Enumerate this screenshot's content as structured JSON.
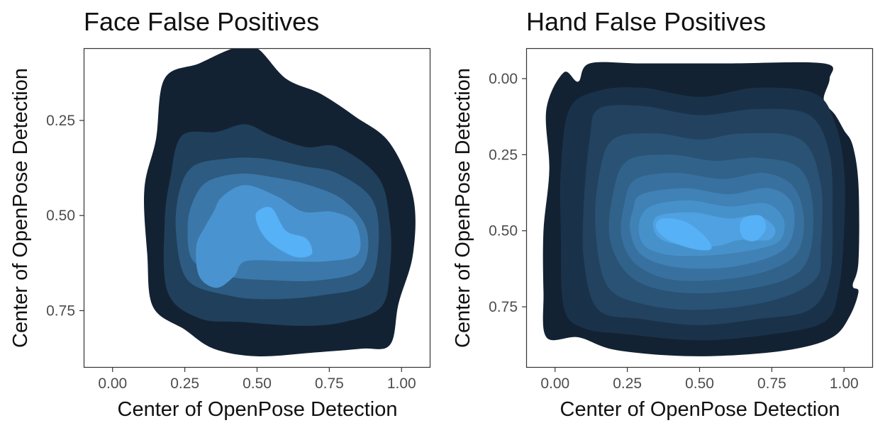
{
  "chart_data": [
    {
      "type": "density-contour",
      "title": "Face False Positives",
      "xlabel": "Center of OpenPose Detection",
      "ylabel": "Center of OpenPose Detection",
      "xlim": [
        -0.1,
        1.1
      ],
      "ylim": [
        0.9,
        0.06
      ],
      "xticks": [
        0,
        0.25,
        0.5,
        0.75,
        1.0
      ],
      "xtick_labels": [
        "0.00",
        "0.25",
        "0.50",
        "0.75",
        "1.00"
      ],
      "yticks": [
        0.25,
        0.5,
        0.75
      ],
      "ytick_labels": [
        "0.25",
        "0.50",
        "0.75"
      ],
      "y_reversed": true,
      "grid": false,
      "fill_color_low": "#132233",
      "fill_color_high": "#56b1f7",
      "levels": [
        {
          "level": 1,
          "contour": [
            [
              0.18,
              0.14
            ],
            [
              0.3,
              0.1
            ],
            [
              0.42,
              0.06
            ],
            [
              0.5,
              0.06
            ],
            [
              0.6,
              0.14
            ],
            [
              0.72,
              0.18
            ],
            [
              0.84,
              0.24
            ],
            [
              0.96,
              0.31
            ],
            [
              1.04,
              0.45
            ],
            [
              1.04,
              0.6
            ],
            [
              0.99,
              0.73
            ],
            [
              0.96,
              0.84
            ],
            [
              0.86,
              0.85
            ],
            [
              0.7,
              0.86
            ],
            [
              0.5,
              0.87
            ],
            [
              0.35,
              0.85
            ],
            [
              0.25,
              0.8
            ],
            [
              0.14,
              0.74
            ],
            [
              0.12,
              0.6
            ],
            [
              0.11,
              0.43
            ],
            [
              0.15,
              0.3
            ]
          ]
        },
        {
          "level": 2,
          "contour": [
            [
              0.24,
              0.29
            ],
            [
              0.36,
              0.28
            ],
            [
              0.46,
              0.26
            ],
            [
              0.55,
              0.29
            ],
            [
              0.67,
              0.32
            ],
            [
              0.78,
              0.32
            ],
            [
              0.92,
              0.4
            ],
            [
              0.96,
              0.52
            ],
            [
              0.96,
              0.64
            ],
            [
              0.93,
              0.74
            ],
            [
              0.8,
              0.78
            ],
            [
              0.65,
              0.79
            ],
            [
              0.45,
              0.78
            ],
            [
              0.3,
              0.77
            ],
            [
              0.19,
              0.7
            ],
            [
              0.18,
              0.52
            ],
            [
              0.2,
              0.4
            ]
          ]
        },
        {
          "level": 3,
          "contour": [
            [
              0.28,
              0.37
            ],
            [
              0.4,
              0.35
            ],
            [
              0.52,
              0.35
            ],
            [
              0.66,
              0.37
            ],
            [
              0.78,
              0.39
            ],
            [
              0.9,
              0.46
            ],
            [
              0.92,
              0.58
            ],
            [
              0.88,
              0.68
            ],
            [
              0.72,
              0.71
            ],
            [
              0.54,
              0.72
            ],
            [
              0.4,
              0.71
            ],
            [
              0.26,
              0.67
            ],
            [
              0.22,
              0.55
            ],
            [
              0.23,
              0.44
            ]
          ]
        },
        {
          "level": 4,
          "contour": [
            [
              0.33,
              0.41
            ],
            [
              0.44,
              0.39
            ],
            [
              0.56,
              0.4
            ],
            [
              0.68,
              0.42
            ],
            [
              0.8,
              0.46
            ],
            [
              0.88,
              0.54
            ],
            [
              0.86,
              0.64
            ],
            [
              0.72,
              0.67
            ],
            [
              0.55,
              0.67
            ],
            [
              0.4,
              0.66
            ],
            [
              0.28,
              0.62
            ],
            [
              0.26,
              0.53
            ],
            [
              0.28,
              0.46
            ]
          ]
        },
        {
          "level": 5,
          "contour": [
            [
              0.38,
              0.45
            ],
            [
              0.46,
              0.42
            ],
            [
              0.57,
              0.45
            ],
            [
              0.66,
              0.49
            ],
            [
              0.76,
              0.49
            ],
            [
              0.84,
              0.52
            ],
            [
              0.85,
              0.6
            ],
            [
              0.74,
              0.62
            ],
            [
              0.6,
              0.62
            ],
            [
              0.46,
              0.62
            ],
            [
              0.42,
              0.66
            ],
            [
              0.36,
              0.69
            ],
            [
              0.3,
              0.66
            ],
            [
              0.29,
              0.58
            ],
            [
              0.32,
              0.53
            ],
            [
              0.35,
              0.49
            ]
          ]
        },
        {
          "level": 6,
          "contour": [
            [
              0.5,
              0.49
            ],
            [
              0.55,
              0.48
            ],
            [
              0.6,
              0.54
            ],
            [
              0.67,
              0.56
            ],
            [
              0.69,
              0.6
            ],
            [
              0.64,
              0.61
            ],
            [
              0.58,
              0.59
            ],
            [
              0.53,
              0.56
            ],
            [
              0.5,
              0.52
            ]
          ]
        }
      ]
    },
    {
      "type": "density-contour",
      "title": "Hand False Positives",
      "xlabel": "Center of OpenPose Detection",
      "ylabel": "Center of OpenPose Detection",
      "xlim": [
        -0.1,
        1.1
      ],
      "ylim": [
        0.95,
        -0.1
      ],
      "xticks": [
        0,
        0.25,
        0.5,
        0.75,
        1.0
      ],
      "xtick_labels": [
        "0.00",
        "0.25",
        "0.50",
        "0.75",
        "1.00"
      ],
      "yticks": [
        0,
        0.25,
        0.5,
        0.75
      ],
      "ytick_labels": [
        "0.00",
        "0.25",
        "0.50",
        "0.75"
      ],
      "y_reversed": true,
      "grid": false,
      "fill_color_low": "#132233",
      "fill_color_high": "#56b1f7",
      "levels": [
        {
          "level": 1,
          "contour": [
            [
              0.03,
              -0.02
            ],
            [
              0.08,
              0.01
            ],
            [
              0.12,
              -0.05
            ],
            [
              0.3,
              -0.05
            ],
            [
              0.6,
              -0.05
            ],
            [
              0.93,
              -0.05
            ],
            [
              0.95,
              0.0
            ],
            [
              0.93,
              0.07
            ],
            [
              0.97,
              0.12
            ],
            [
              1.0,
              0.17
            ],
            [
              1.03,
              0.22
            ],
            [
              1.05,
              0.35
            ],
            [
              1.05,
              0.6
            ],
            [
              1.03,
              0.68
            ],
            [
              1.05,
              0.7
            ],
            [
              1.02,
              0.78
            ],
            [
              0.96,
              0.85
            ],
            [
              0.82,
              0.89
            ],
            [
              0.6,
              0.91
            ],
            [
              0.4,
              0.91
            ],
            [
              0.2,
              0.89
            ],
            [
              0.08,
              0.85
            ],
            [
              -0.03,
              0.85
            ],
            [
              -0.04,
              0.7
            ],
            [
              -0.04,
              0.5
            ],
            [
              -0.02,
              0.3
            ],
            [
              -0.03,
              0.1
            ]
          ]
        },
        {
          "level": 2,
          "contour": [
            [
              0.05,
              0.1
            ],
            [
              0.15,
              0.04
            ],
            [
              0.3,
              0.03
            ],
            [
              0.5,
              0.06
            ],
            [
              0.7,
              0.03
            ],
            [
              0.9,
              0.05
            ],
            [
              0.97,
              0.15
            ],
            [
              1.0,
              0.3
            ],
            [
              1.0,
              0.5
            ],
            [
              0.98,
              0.7
            ],
            [
              0.93,
              0.8
            ],
            [
              0.75,
              0.84
            ],
            [
              0.5,
              0.86
            ],
            [
              0.25,
              0.84
            ],
            [
              0.1,
              0.82
            ],
            [
              0.03,
              0.75
            ],
            [
              0.02,
              0.5
            ],
            [
              0.02,
              0.3
            ]
          ]
        },
        {
          "level": 3,
          "contour": [
            [
              0.15,
              0.1
            ],
            [
              0.3,
              0.09
            ],
            [
              0.5,
              0.12
            ],
            [
              0.7,
              0.1
            ],
            [
              0.88,
              0.12
            ],
            [
              0.95,
              0.25
            ],
            [
              0.96,
              0.45
            ],
            [
              0.95,
              0.65
            ],
            [
              0.88,
              0.76
            ],
            [
              0.7,
              0.79
            ],
            [
              0.5,
              0.81
            ],
            [
              0.3,
              0.79
            ],
            [
              0.15,
              0.76
            ],
            [
              0.1,
              0.6
            ],
            [
              0.1,
              0.4
            ],
            [
              0.12,
              0.2
            ]
          ]
        },
        {
          "level": 4,
          "contour": [
            [
              0.2,
              0.2
            ],
            [
              0.35,
              0.18
            ],
            [
              0.5,
              0.2
            ],
            [
              0.65,
              0.18
            ],
            [
              0.85,
              0.2
            ],
            [
              0.92,
              0.35
            ],
            [
              0.92,
              0.55
            ],
            [
              0.9,
              0.66
            ],
            [
              0.75,
              0.73
            ],
            [
              0.5,
              0.76
            ],
            [
              0.3,
              0.74
            ],
            [
              0.18,
              0.68
            ],
            [
              0.14,
              0.5
            ],
            [
              0.15,
              0.33
            ]
          ]
        },
        {
          "level": 5,
          "contour": [
            [
              0.25,
              0.27
            ],
            [
              0.4,
              0.25
            ],
            [
              0.55,
              0.27
            ],
            [
              0.7,
              0.26
            ],
            [
              0.84,
              0.29
            ],
            [
              0.89,
              0.4
            ],
            [
              0.88,
              0.58
            ],
            [
              0.8,
              0.66
            ],
            [
              0.6,
              0.7
            ],
            [
              0.4,
              0.7
            ],
            [
              0.26,
              0.65
            ],
            [
              0.19,
              0.53
            ],
            [
              0.2,
              0.38
            ]
          ]
        },
        {
          "level": 6,
          "contour": [
            [
              0.28,
              0.33
            ],
            [
              0.42,
              0.31
            ],
            [
              0.58,
              0.33
            ],
            [
              0.72,
              0.31
            ],
            [
              0.82,
              0.35
            ],
            [
              0.86,
              0.45
            ],
            [
              0.84,
              0.57
            ],
            [
              0.74,
              0.63
            ],
            [
              0.58,
              0.66
            ],
            [
              0.4,
              0.66
            ],
            [
              0.28,
              0.61
            ],
            [
              0.23,
              0.52
            ],
            [
              0.24,
              0.41
            ]
          ]
        },
        {
          "level": 7,
          "contour": [
            [
              0.3,
              0.38
            ],
            [
              0.45,
              0.36
            ],
            [
              0.6,
              0.38
            ],
            [
              0.74,
              0.36
            ],
            [
              0.82,
              0.41
            ],
            [
              0.82,
              0.52
            ],
            [
              0.76,
              0.58
            ],
            [
              0.6,
              0.62
            ],
            [
              0.42,
              0.62
            ],
            [
              0.3,
              0.58
            ],
            [
              0.26,
              0.5
            ],
            [
              0.27,
              0.43
            ]
          ]
        },
        {
          "level": 8,
          "contour": [
            [
              0.33,
              0.42
            ],
            [
              0.46,
              0.4
            ],
            [
              0.6,
              0.42
            ],
            [
              0.73,
              0.41
            ],
            [
              0.79,
              0.46
            ],
            [
              0.78,
              0.53
            ],
            [
              0.7,
              0.56
            ],
            [
              0.55,
              0.58
            ],
            [
              0.4,
              0.58
            ],
            [
              0.31,
              0.55
            ],
            [
              0.29,
              0.48
            ]
          ]
        },
        {
          "level": 9,
          "contour": [
            [
              0.36,
              0.45
            ],
            [
              0.48,
              0.44
            ],
            [
              0.6,
              0.46
            ],
            [
              0.7,
              0.45
            ],
            [
              0.76,
              0.49
            ],
            [
              0.74,
              0.53
            ],
            [
              0.64,
              0.53
            ],
            [
              0.56,
              0.55
            ],
            [
              0.46,
              0.55
            ],
            [
              0.37,
              0.53
            ],
            [
              0.34,
              0.49
            ]
          ]
        },
        {
          "level": 10,
          "contour": [
            [
              0.37,
              0.46
            ],
            [
              0.45,
              0.47
            ],
            [
              0.52,
              0.52
            ],
            [
              0.54,
              0.56
            ],
            [
              0.48,
              0.56
            ],
            [
              0.39,
              0.53
            ],
            [
              0.35,
              0.49
            ]
          ]
        },
        {
          "level": 10,
          "contour": [
            [
              0.65,
              0.46
            ],
            [
              0.71,
              0.45
            ],
            [
              0.73,
              0.49
            ],
            [
              0.7,
              0.53
            ],
            [
              0.66,
              0.53
            ],
            [
              0.64,
              0.5
            ]
          ]
        }
      ]
    }
  ]
}
